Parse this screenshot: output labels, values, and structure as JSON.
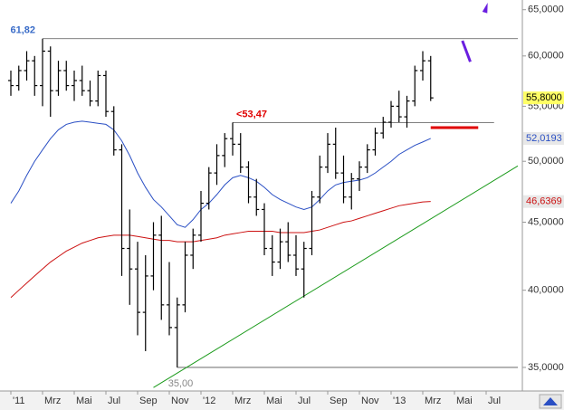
{
  "chart_data": {
    "type": "ohlc",
    "log": true,
    "ylim": [
      33.6,
      66.1
    ],
    "yticks": [
      {
        "value": 35,
        "label": "35,0000"
      },
      {
        "value": 40,
        "label": "40,0000"
      },
      {
        "value": 45,
        "label": "45,0000"
      },
      {
        "value": 50,
        "label": "50,0000"
      },
      {
        "value": 55,
        "label": "55,0000"
      },
      {
        "value": 60,
        "label": "60,0000"
      },
      {
        "value": 65,
        "label": "65,0000"
      }
    ],
    "categories": [
      "'11",
      null,
      null,
      null,
      "Mrz",
      null,
      null,
      null,
      "Mai",
      null,
      null,
      null,
      "Jul",
      null,
      null,
      null,
      "Sep",
      null,
      null,
      null,
      "Nov",
      null,
      null,
      null,
      "'12",
      null,
      null,
      null,
      "Mrz",
      null,
      null,
      null,
      "Mai",
      null,
      null,
      null,
      "Jul",
      null,
      null,
      null,
      "Sep",
      null,
      null,
      null,
      "Nov",
      null,
      null,
      null,
      "'13",
      null,
      null,
      null,
      "Mrz",
      null,
      null,
      null,
      "Mai",
      null,
      null,
      null,
      "Jul",
      null,
      null,
      null,
      null
    ],
    "color": "#000000",
    "open": [
      57.5,
      57.0,
      58.5,
      59.5,
      57.0,
      60.5,
      56.5,
      58.5,
      57.0,
      57.5,
      56.5,
      55.5,
      58.0,
      54.5,
      51.0,
      43.0,
      41.5,
      38.5,
      41.0,
      44.0,
      39.0,
      37.5,
      39.0,
      42.5,
      44.0,
      46.5,
      49.0,
      50.5,
      52.0,
      51.5,
      49.5,
      47.0,
      46.0,
      43.0,
      42.0,
      43.5,
      42.5,
      41.5,
      43.0,
      47.0,
      49.5,
      51.5,
      49.0,
      47.0,
      48.5,
      49.5,
      51.0,
      52.5,
      53.5,
      55.0,
      54.0,
      55.5,
      58.5,
      59.5,
      null,
      null,
      null,
      null,
      null,
      null,
      null,
      null,
      null,
      null,
      null
    ],
    "high": [
      58.5,
      59.0,
      60.5,
      60.0,
      61.82,
      61.0,
      59.5,
      59.5,
      58.5,
      59.0,
      57.5,
      58.5,
      58.5,
      55.0,
      51.5,
      46.0,
      43.5,
      42.5,
      45.0,
      45.5,
      42.0,
      39.5,
      43.5,
      44.5,
      47.5,
      49.5,
      51.5,
      52.5,
      53.47,
      52.5,
      50.0,
      48.5,
      46.5,
      44.0,
      44.5,
      45.0,
      44.0,
      43.5,
      47.5,
      50.5,
      52.5,
      53.0,
      50.5,
      49.0,
      50.0,
      51.5,
      53.0,
      54.0,
      55.5,
      56.5,
      56.0,
      59.0,
      60.5,
      60.0,
      null,
      null,
      null,
      null,
      null,
      null,
      null,
      null,
      null,
      null,
      null
    ],
    "low": [
      56.0,
      56.5,
      57.5,
      56.0,
      55.0,
      54.0,
      56.0,
      56.5,
      55.5,
      56.0,
      55.0,
      55.0,
      54.0,
      50.5,
      41.0,
      39.0,
      37.0,
      36.0,
      40.0,
      38.0,
      37.0,
      35.0,
      38.5,
      41.5,
      43.5,
      46.0,
      48.0,
      49.5,
      50.5,
      49.0,
      46.5,
      45.5,
      42.5,
      41.0,
      41.5,
      42.0,
      41.0,
      39.5,
      42.5,
      46.5,
      49.0,
      48.5,
      46.5,
      46.0,
      47.5,
      49.0,
      50.5,
      52.0,
      53.0,
      53.5,
      53.0,
      55.0,
      57.5,
      55.5,
      null,
      null,
      null,
      null,
      null,
      null,
      null,
      null,
      null,
      null,
      null
    ],
    "close": [
      57.0,
      58.5,
      59.5,
      57.0,
      60.5,
      56.5,
      58.5,
      57.0,
      57.5,
      56.5,
      55.5,
      58.0,
      54.5,
      51.0,
      43.0,
      41.5,
      38.5,
      41.0,
      44.0,
      39.0,
      37.5,
      39.0,
      42.5,
      44.0,
      46.5,
      49.0,
      50.5,
      52.0,
      51.5,
      49.5,
      47.0,
      46.0,
      43.0,
      42.0,
      43.5,
      42.5,
      41.5,
      43.0,
      47.0,
      49.5,
      51.5,
      49.0,
      47.0,
      48.5,
      49.5,
      51.0,
      52.5,
      53.5,
      55.0,
      54.0,
      55.5,
      58.5,
      59.5,
      55.8,
      null,
      null,
      null,
      null,
      null,
      null,
      null,
      null,
      null,
      null,
      null
    ],
    "close_label": "55,8000",
    "moving_averages": [
      {
        "color": "#2a4fc4",
        "label": "52,0193",
        "values": [
          46.5,
          47.5,
          48.8,
          50,
          51,
          52,
          52.8,
          53.3,
          53.5,
          53.6,
          53.5,
          53.4,
          53.3,
          52.8,
          51.8,
          50.5,
          49,
          47.8,
          46.8,
          46.2,
          45.5,
          44.8,
          44.6,
          45.2,
          46.0,
          46.5,
          47.2,
          48.0,
          48.6,
          48.8,
          48.6,
          48.3,
          47.8,
          47.2,
          46.8,
          46.5,
          46.2,
          46.0,
          46.2,
          46.8,
          47.5,
          48.0,
          48.2,
          48.3,
          48.4,
          48.6,
          49.0,
          49.5,
          50.0,
          50.6,
          51.0,
          51.4,
          51.7,
          52.0193,
          null,
          null,
          null,
          null,
          null,
          null,
          null,
          null,
          null,
          null,
          null
        ]
      },
      {
        "color": "#cc1111",
        "label": "46,6369",
        "values": [
          39.5,
          40,
          40.5,
          41,
          41.5,
          42,
          42.4,
          42.8,
          43.1,
          43.4,
          43.6,
          43.8,
          43.9,
          44.0,
          44.0,
          44.0,
          43.9,
          43.8,
          43.7,
          43.6,
          43.6,
          43.5,
          43.5,
          43.5,
          43.6,
          43.7,
          43.8,
          44.0,
          44.1,
          44.2,
          44.3,
          44.3,
          44.3,
          44.3,
          44.2,
          44.2,
          44.2,
          44.2,
          44.3,
          44.4,
          44.6,
          44.8,
          45.0,
          45.1,
          45.3,
          45.5,
          45.7,
          45.9,
          46.1,
          46.3,
          46.4,
          46.5,
          46.6,
          46.6369,
          null,
          null,
          null,
          null,
          null,
          null,
          null,
          null,
          null,
          null,
          null
        ]
      }
    ],
    "levels": [
      {
        "label": "61,82",
        "value": 61.82,
        "from": 4,
        "to": 64,
        "color": "#3a6cc8"
      },
      {
        "label": "<53,47",
        "value": 53.47,
        "from": 28,
        "to": 61,
        "color": "#e00000"
      },
      {
        "label": "35,00",
        "value": 35.0,
        "from": 21,
        "to": 64,
        "color": "#888888"
      }
    ],
    "trendline": {
      "x": [
        18,
        64
      ],
      "values": [
        33.8,
        49.6
      ],
      "color": "#1a9a1a"
    },
    "support_line": {
      "value": 53.0,
      "from": 53,
      "to": 59,
      "color": "#e00000"
    },
    "projection": {
      "color": "#6a1ee0",
      "values": [
        null,
        null,
        null,
        null,
        null,
        null,
        null,
        null,
        null,
        null,
        null,
        null,
        null,
        null,
        null,
        null,
        null,
        null,
        null,
        null,
        null,
        null,
        null,
        null,
        null,
        null,
        null,
        null,
        null,
        null,
        null,
        null,
        null,
        null,
        null,
        null,
        null,
        null,
        null,
        null,
        null,
        null,
        null,
        null,
        null,
        null,
        null,
        null,
        null,
        null,
        null,
        null,
        null,
        55.8,
        null,
        53.7,
        null,
        61.6,
        59.4,
        null,
        65.2,
        null,
        null,
        null,
        null
      ]
    }
  }
}
